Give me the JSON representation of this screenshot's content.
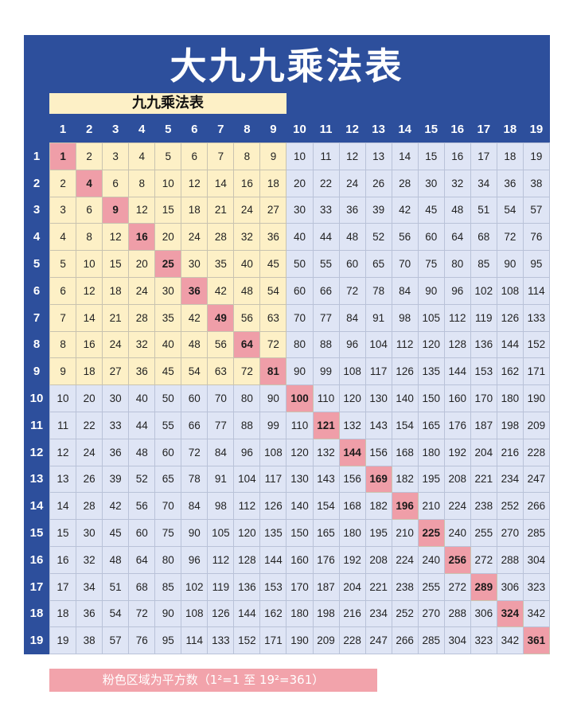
{
  "title": "大九九乘法表",
  "subtitle": "九九乘法表",
  "note": "粉色区域为平方数（1²=1 至 19²=361）",
  "colors": {
    "frame": "#2d4f9c",
    "nine_by_nine": "#fdf0c6",
    "extended": "#dfe5f5",
    "squares": "#ef9ea8"
  },
  "column_headers": [
    1,
    2,
    3,
    4,
    5,
    6,
    7,
    8,
    9,
    10,
    11,
    12,
    13,
    14,
    15,
    16,
    17,
    18,
    19
  ],
  "row_headers": [
    1,
    2,
    3,
    4,
    5,
    6,
    7,
    8,
    9,
    10,
    11,
    12,
    13,
    14,
    15,
    16,
    17,
    18,
    19
  ],
  "cells": [
    [
      1,
      2,
      3,
      4,
      5,
      6,
      7,
      8,
      9,
      10,
      11,
      12,
      13,
      14,
      15,
      16,
      17,
      18,
      19
    ],
    [
      2,
      4,
      6,
      8,
      10,
      12,
      14,
      16,
      18,
      20,
      22,
      24,
      26,
      28,
      30,
      32,
      34,
      36,
      38
    ],
    [
      3,
      6,
      9,
      12,
      15,
      18,
      21,
      24,
      27,
      30,
      33,
      36,
      39,
      42,
      45,
      48,
      51,
      54,
      57
    ],
    [
      4,
      8,
      12,
      16,
      20,
      24,
      28,
      32,
      36,
      40,
      44,
      48,
      52,
      56,
      60,
      64,
      68,
      72,
      76
    ],
    [
      5,
      10,
      15,
      20,
      25,
      30,
      35,
      40,
      45,
      50,
      55,
      60,
      65,
      70,
      75,
      80,
      85,
      90,
      95
    ],
    [
      6,
      12,
      18,
      24,
      30,
      36,
      42,
      48,
      54,
      60,
      66,
      72,
      78,
      84,
      90,
      96,
      102,
      108,
      114
    ],
    [
      7,
      14,
      21,
      28,
      35,
      42,
      49,
      56,
      63,
      70,
      77,
      84,
      91,
      98,
      105,
      112,
      119,
      126,
      133
    ],
    [
      8,
      16,
      24,
      32,
      40,
      48,
      56,
      64,
      72,
      80,
      88,
      96,
      104,
      112,
      120,
      128,
      136,
      144,
      152
    ],
    [
      9,
      18,
      27,
      36,
      45,
      54,
      63,
      72,
      81,
      90,
      99,
      108,
      117,
      126,
      135,
      144,
      153,
      162,
      171
    ],
    [
      10,
      20,
      30,
      40,
      50,
      60,
      70,
      80,
      90,
      100,
      110,
      120,
      130,
      140,
      150,
      160,
      170,
      180,
      190
    ],
    [
      11,
      22,
      33,
      44,
      55,
      66,
      77,
      88,
      99,
      110,
      121,
      132,
      143,
      154,
      165,
      176,
      187,
      198,
      209
    ],
    [
      12,
      24,
      36,
      48,
      60,
      72,
      84,
      96,
      108,
      120,
      132,
      144,
      156,
      168,
      180,
      192,
      204,
      216,
      228
    ],
    [
      13,
      26,
      39,
      52,
      65,
      78,
      91,
      104,
      117,
      130,
      143,
      156,
      169,
      182,
      195,
      208,
      221,
      234,
      247
    ],
    [
      14,
      28,
      42,
      56,
      70,
      84,
      98,
      112,
      126,
      140,
      154,
      168,
      182,
      196,
      210,
      224,
      238,
      252,
      266
    ],
    [
      15,
      30,
      45,
      60,
      75,
      90,
      105,
      120,
      135,
      150,
      165,
      180,
      195,
      210,
      225,
      240,
      255,
      270,
      285
    ],
    [
      16,
      32,
      48,
      64,
      80,
      96,
      112,
      128,
      144,
      160,
      176,
      192,
      208,
      224,
      240,
      256,
      272,
      288,
      304
    ],
    [
      17,
      34,
      51,
      68,
      85,
      102,
      119,
      136,
      153,
      170,
      187,
      204,
      221,
      238,
      255,
      272,
      289,
      306,
      323
    ],
    [
      18,
      36,
      54,
      72,
      90,
      108,
      126,
      144,
      162,
      180,
      198,
      216,
      234,
      252,
      270,
      288,
      306,
      324,
      342
    ],
    [
      19,
      38,
      57,
      76,
      95,
      114,
      133,
      152,
      171,
      190,
      209,
      228,
      247,
      266,
      285,
      304,
      323,
      342,
      361
    ]
  ]
}
